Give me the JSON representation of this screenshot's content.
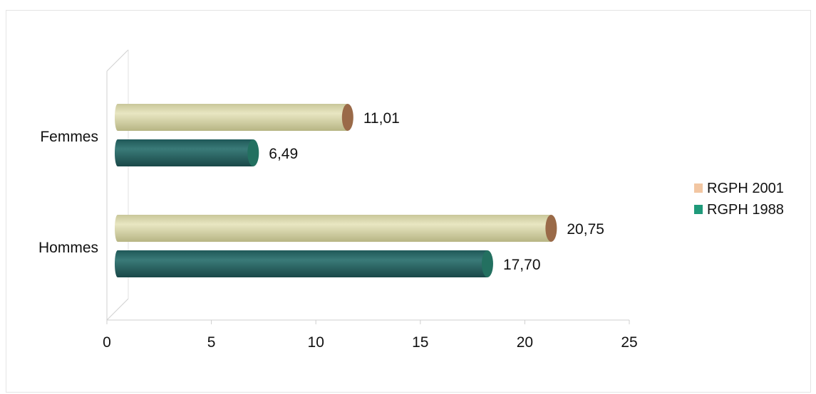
{
  "chart_data": {
    "type": "bar",
    "orientation": "horizontal",
    "categories": [
      "Femmes",
      "Hommes"
    ],
    "series": [
      {
        "name": "RGPH 2001",
        "values": [
          11.01,
          20.75
        ],
        "labels": [
          "11,01",
          "20,75"
        ],
        "color": "#d8d6a8",
        "legend_color": "#f2c6a2"
      },
      {
        "name": "RGPH 1988",
        "values": [
          6.49,
          17.7
        ],
        "labels": [
          "6,49",
          "17,70"
        ],
        "color": "#2e6a6a",
        "legend_color": "#1f9a7a"
      }
    ],
    "xlim": [
      0,
      25
    ],
    "xticks": [
      "0",
      "5",
      "10",
      "15",
      "20",
      "25"
    ],
    "legend_position": "right",
    "grid": false,
    "title": "",
    "xlabel": "",
    "ylabel": ""
  }
}
